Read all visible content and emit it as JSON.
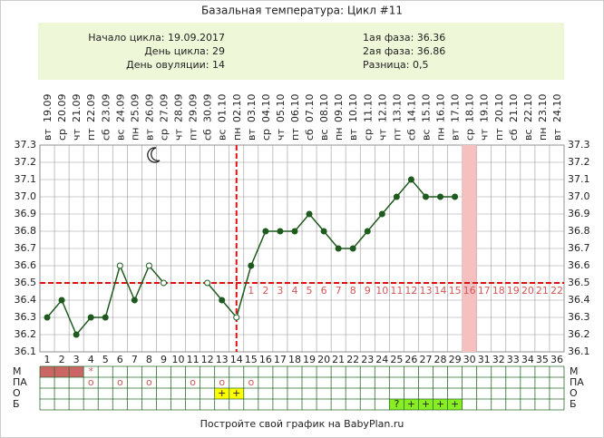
{
  "header": {
    "title": "Базальная температура: Цикл #11",
    "info_left": [
      "Начало цикла: 19.09.2017",
      "День цикла: 29",
      "День овуляции: 14"
    ],
    "info_right": [
      "1ая фаза: 36.36",
      "2ая фаза: 36.86",
      "Разница: 0,5"
    ]
  },
  "chart_data": {
    "type": "line",
    "x": [
      1,
      2,
      3,
      4,
      5,
      6,
      7,
      8,
      9,
      10,
      11,
      12,
      13,
      14,
      15,
      16,
      17,
      18,
      19,
      20,
      21,
      22,
      23,
      24,
      25,
      26,
      27,
      28,
      29,
      30,
      31,
      32,
      33,
      34,
      35,
      36
    ],
    "dates": [
      "19.09",
      "20.09",
      "21.09",
      "22.09",
      "23.09",
      "24.09",
      "25.09",
      "26.09",
      "27.09",
      "28.09",
      "29.09",
      "30.09",
      "01.10",
      "02.10",
      "03.10",
      "04.10",
      "05.10",
      "06.10",
      "07.10",
      "08.10",
      "09.10",
      "10.10",
      "11.10",
      "12.10",
      "13.10",
      "14.10",
      "15.10",
      "16.10",
      "17.10",
      "18.10",
      "19.10",
      "20.10",
      "21.10",
      "22.10",
      "23.10",
      "24.10"
    ],
    "weekdays": [
      "вт",
      "ср",
      "чт",
      "пт",
      "сб",
      "вс",
      "пн",
      "вт",
      "ср",
      "чт",
      "пт",
      "сб",
      "вс",
      "пн",
      "вт",
      "ср",
      "чт",
      "пт",
      "сб",
      "вс",
      "пн",
      "вт",
      "ср",
      "чт",
      "пт",
      "сб",
      "вс",
      "пн",
      "вт",
      "ср",
      "чт",
      "пт",
      "сб",
      "вс",
      "пн",
      "вт"
    ],
    "series": [
      {
        "name": "Температура",
        "color": "#1e5a1e",
        "values": [
          36.3,
          36.4,
          36.2,
          36.3,
          36.3,
          36.6,
          36.4,
          36.6,
          36.5,
          null,
          null,
          36.5,
          36.4,
          36.3,
          36.6,
          36.8,
          36.8,
          36.8,
          36.9,
          36.8,
          36.7,
          36.7,
          36.8,
          36.9,
          37.0,
          37.1,
          37.0,
          37.0,
          37.0,
          null,
          null,
          null,
          null,
          null,
          null,
          null
        ]
      }
    ],
    "open_points": [
      6,
      8,
      9,
      12,
      14
    ],
    "xlim": [
      0.5,
      36.5
    ],
    "ylim": [
      36.1,
      37.3
    ],
    "yticks": [
      36.1,
      36.2,
      36.3,
      36.4,
      36.5,
      36.6,
      36.7,
      36.8,
      36.9,
      {
        "value": 37,
        "label": "37.0"
      },
      37.1,
      37.2,
      37.3
    ],
    "grid": true,
    "coverline": 36.5,
    "ovulation_day": 14,
    "highlight_day": 30,
    "post_ovulation_days": [
      "1",
      "2",
      "3",
      "4",
      "5",
      "6",
      "7",
      "8",
      "9",
      "10",
      "11",
      "12",
      "13",
      "14",
      "15",
      "16",
      "17",
      "18",
      "19",
      "20",
      "21",
      "22"
    ],
    "rows": [
      {
        "label": "М",
        "marks": [
          {
            "day": 1,
            "color": "#cc6666"
          },
          {
            "day": 2,
            "color": "#cc6666"
          },
          {
            "day": 3,
            "color": "#cc6666"
          },
          {
            "day": 4,
            "text": "*"
          }
        ]
      },
      {
        "label": "ПА",
        "marks": [
          {
            "day": 4,
            "text": "o"
          },
          {
            "day": 6,
            "text": "o"
          },
          {
            "day": 8,
            "text": "o"
          },
          {
            "day": 11,
            "text": "o"
          },
          {
            "day": 13,
            "text": "o"
          },
          {
            "day": 15,
            "text": "o"
          }
        ]
      },
      {
        "label": "О",
        "marks": [
          {
            "day": 13,
            "text": "+",
            "color": "#ffff00"
          },
          {
            "day": 14,
            "text": "+",
            "color": "#ffff00"
          }
        ]
      },
      {
        "label": "Б",
        "marks": [
          {
            "day": 25,
            "text": "?",
            "color": "#88ee22"
          },
          {
            "day": 26,
            "text": "+",
            "color": "#88ee22"
          },
          {
            "day": 27,
            "text": "+",
            "color": "#88ee22"
          },
          {
            "day": 28,
            "text": "+",
            "color": "#88ee22"
          },
          {
            "day": 29,
            "text": "+",
            "color": "#88ee22"
          }
        ]
      }
    ]
  },
  "footer": "Постройте свой график на BabyPlan.ru"
}
